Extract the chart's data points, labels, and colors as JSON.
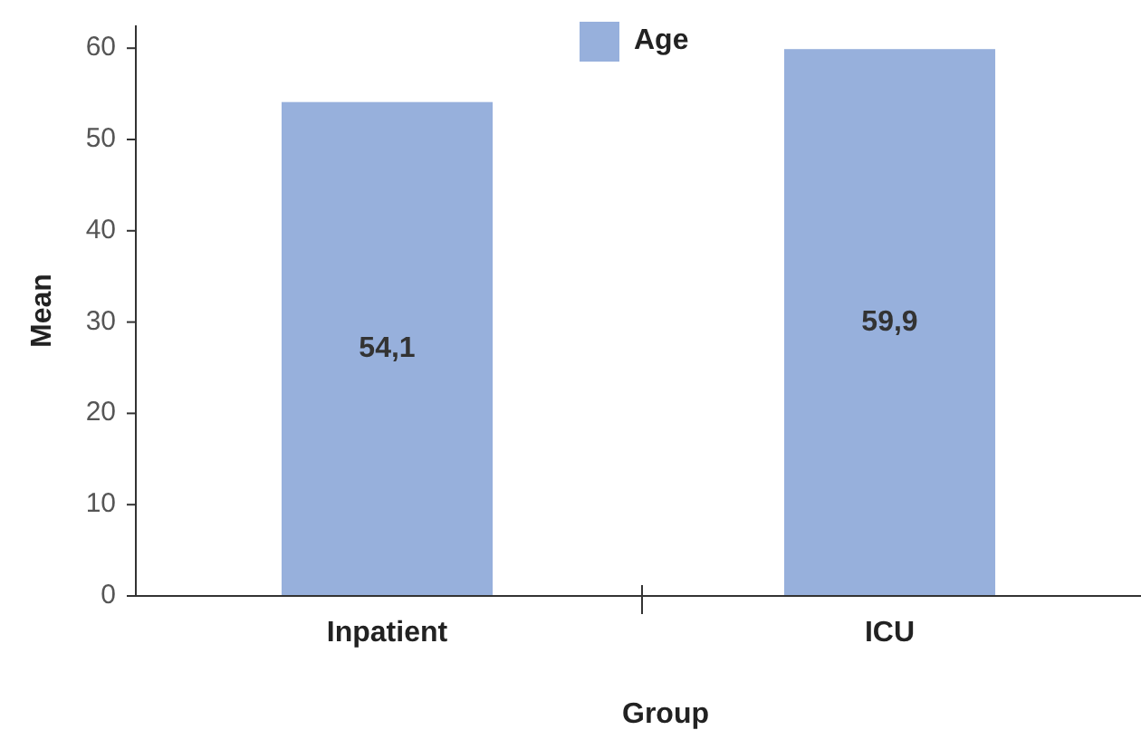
{
  "chart_data": {
    "type": "bar",
    "xlabel": "Group",
    "ylabel": "Mean",
    "categories": [
      "Inpatient",
      "ICU"
    ],
    "series": [
      {
        "name": "Age",
        "color": "#97b0dc",
        "values": [
          54.1,
          59.9
        ],
        "value_labels": [
          "54,1",
          "59,9"
        ]
      }
    ],
    "ylim": [
      0,
      62.5
    ],
    "yticks": [
      0,
      10,
      20,
      30,
      40,
      50,
      60
    ],
    "grid": false,
    "legend": "top"
  }
}
